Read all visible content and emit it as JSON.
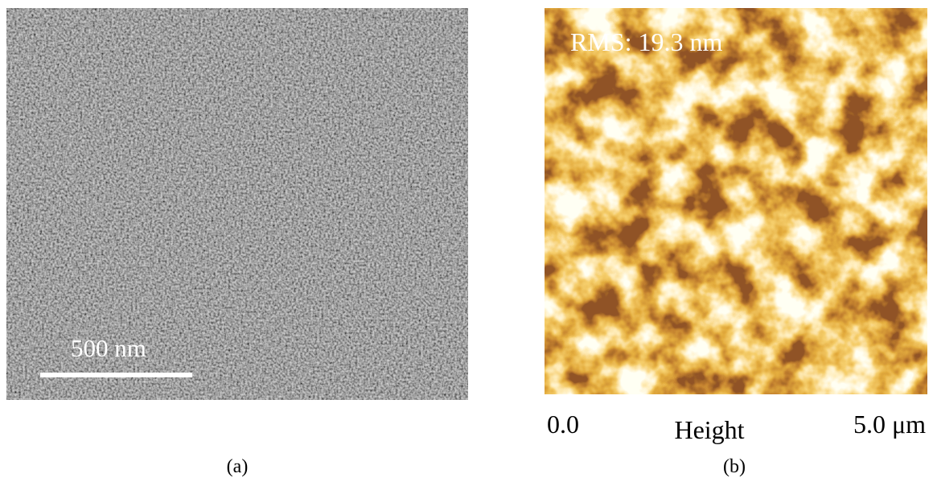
{
  "panels": {
    "a": {
      "scale_bar_label": "500 nm",
      "caption": "(a)"
    },
    "b": {
      "annotation": "RMS: 19.3 nm",
      "axis_start": "0.0",
      "axis_title": "Height",
      "axis_end": "5.0 μm",
      "caption": "(b)"
    }
  }
}
